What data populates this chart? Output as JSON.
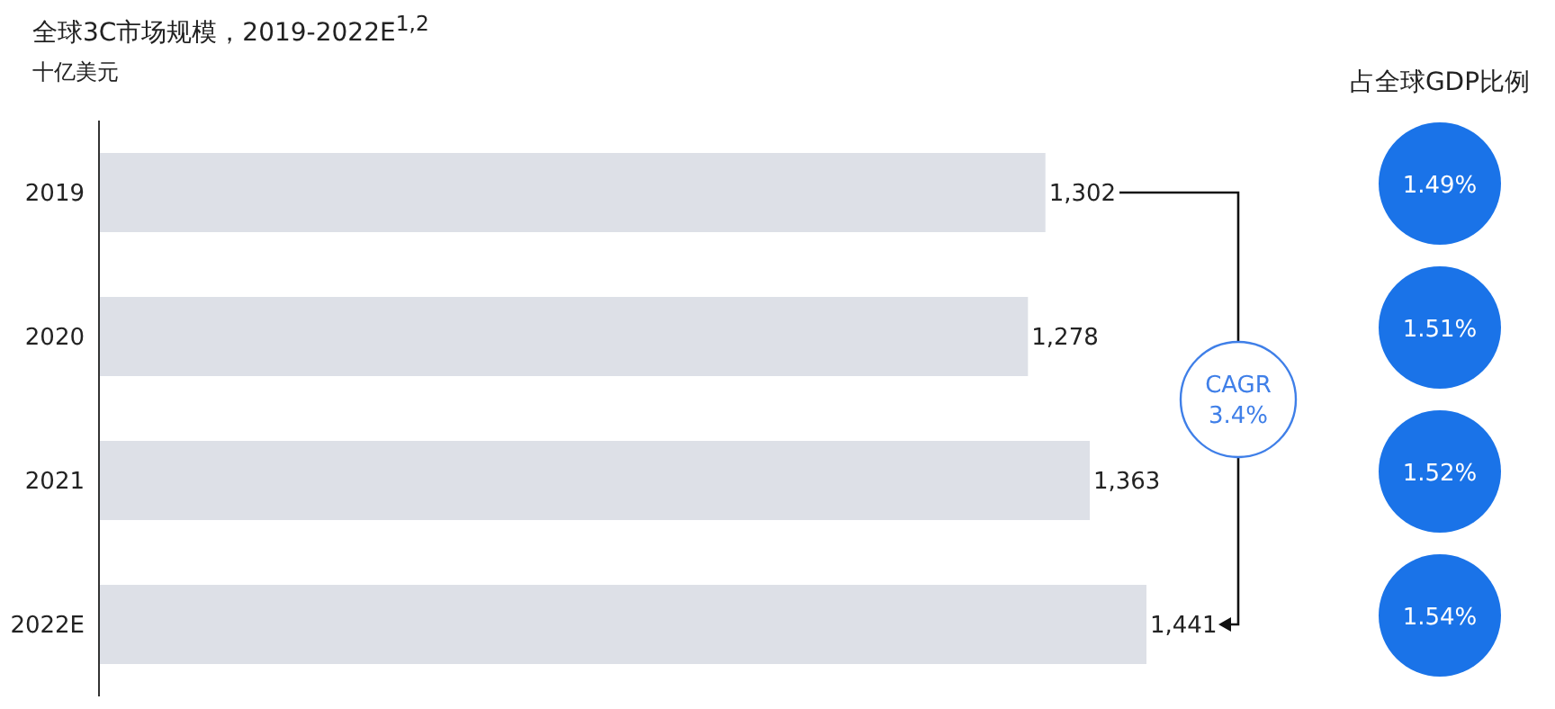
{
  "chart_data": {
    "type": "bar",
    "orientation": "horizontal",
    "title": "全球3C市场规模，2019-2022E$^{1,2}$",
    "subtitle": "十亿美元",
    "categories": [
      "2019",
      "2020",
      "2021",
      "2022E"
    ],
    "values": [
      1302,
      1278,
      1363,
      1441
    ],
    "color": "#dde0e7",
    "value_labels": [
      "1,302",
      "1,278",
      "1,363",
      "1,441"
    ],
    "tick_labels": "y",
    "annotations": [
      "占全球GDP比例",
      "1.49%",
      "1.51%",
      "1.52%",
      "1.54%",
      "CAGR\n3.4%"
    ]
  }
}
